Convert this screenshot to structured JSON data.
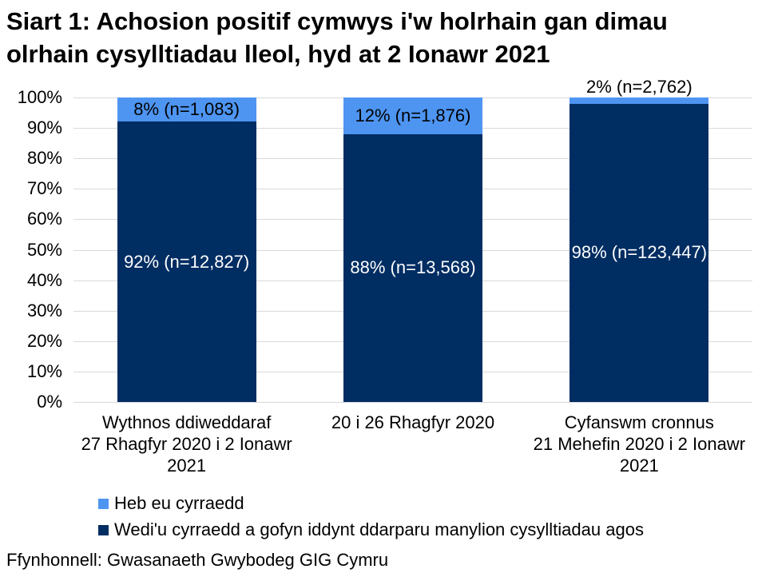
{
  "title": "Siart 1: Achosion positif cymwys i'w holrhain gan dimau olrhain cysylltiadau lleol, hyd at 2 Ionawr 2021",
  "source": "Ffynhonnell: Gwasanaeth Gwybodeg GIG Cymru",
  "colors": {
    "background": "#FFFFFF",
    "grid": "#D9D9D9",
    "text": "#000000",
    "reached": "#002D62",
    "not_reached": "#4E95F2"
  },
  "chart_data": {
    "type": "bar",
    "stacked": true,
    "title": "Siart 1: Achosion positif cymwys i'w holrhain gan dimau olrhain cysylltiadau lleol, hyd at 2 Ionawr 2021",
    "categories": [
      {
        "lines": [
          "Wythnos ddiweddaraf",
          "27 Rhagfyr 2020 i 2 Ionawr",
          "2021"
        ]
      },
      {
        "lines": [
          "20 i 26 Rhagfyr 2020"
        ]
      },
      {
        "lines": [
          "Cyfanswm cronnus",
          "21 Mehefin 2020 i 2 Ionawr",
          "2021"
        ]
      }
    ],
    "series": [
      {
        "name": "Wedi'u cyrraedd a gofyn iddynt ddarparu manylion cysylltiadau agos",
        "color": "#002D62",
        "values": [
          92,
          88,
          98
        ],
        "counts": [
          12827,
          13568,
          123447
        ],
        "labels": [
          "92% (n=12,827)",
          "88% (n=13,568)",
          "98% (n=123,447)"
        ],
        "label_color": "#FFFFFF",
        "label_placement": [
          "inside",
          "inside",
          "inside"
        ]
      },
      {
        "name": "Heb eu cyrraedd",
        "color": "#4E95F2",
        "values": [
          8,
          12,
          2
        ],
        "counts": [
          1083,
          1876,
          2762
        ],
        "labels": [
          "8% (n=1,083)",
          "12% (n=1,876)",
          "2% (n=2,762)"
        ],
        "label_color": "#000000",
        "label_placement": [
          "inside",
          "inside",
          "above"
        ]
      }
    ],
    "ylim": [
      0,
      100
    ],
    "ytick_labels": [
      "0%",
      "10%",
      "20%",
      "30%",
      "40%",
      "50%",
      "60%",
      "70%",
      "80%",
      "90%",
      "100%"
    ],
    "grid": true,
    "legend_position": "bottom",
    "legend_order": [
      1,
      0
    ]
  }
}
